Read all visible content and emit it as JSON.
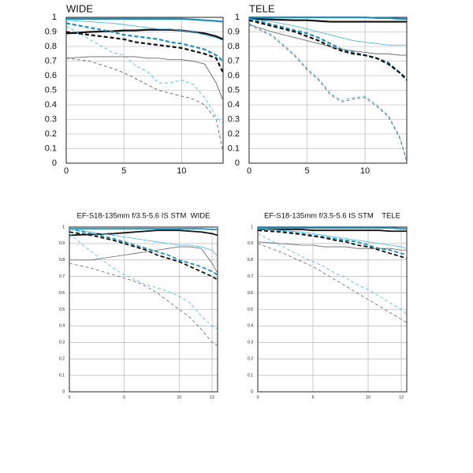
{
  "chart_data": [
    {
      "type": "line",
      "title": "WIDE",
      "title_align": "left",
      "x": [
        0,
        2,
        4,
        5,
        6,
        7,
        8,
        9,
        10,
        11,
        12,
        13,
        13.6
      ],
      "xlim": [
        0,
        13.6
      ],
      "ylim": [
        0,
        1
      ],
      "xticks": [
        0,
        5,
        10
      ],
      "yticks": [
        0,
        0.1,
        0.2,
        0.3,
        0.4,
        0.5,
        0.6,
        0.7,
        0.8,
        0.9,
        1
      ],
      "grid": true,
      "series": [
        {
          "color": "#1a8fc0",
          "linewidth": 2.2,
          "dashed": false,
          "values": [
            0.99,
            0.99,
            0.99,
            0.99,
            0.99,
            0.99,
            0.99,
            0.99,
            0.99,
            0.985,
            0.98,
            0.975,
            0.97
          ]
        },
        {
          "color": "#111111",
          "linewidth": 2.2,
          "dashed": false,
          "values": [
            0.89,
            0.9,
            0.905,
            0.91,
            0.91,
            0.915,
            0.915,
            0.915,
            0.91,
            0.9,
            0.89,
            0.87,
            0.85
          ]
        },
        {
          "color": "#1a8fc0",
          "linewidth": 2.2,
          "dashed": true,
          "values": [
            0.96,
            0.93,
            0.9,
            0.88,
            0.87,
            0.86,
            0.85,
            0.83,
            0.82,
            0.8,
            0.78,
            0.74,
            0.7
          ]
        },
        {
          "color": "#111111",
          "linewidth": 2.2,
          "dashed": true,
          "values": [
            0.9,
            0.88,
            0.86,
            0.85,
            0.83,
            0.82,
            0.81,
            0.8,
            0.79,
            0.77,
            0.75,
            0.72,
            0.62
          ]
        },
        {
          "color": "#4ab8e0",
          "linewidth": 0.9,
          "dashed": false,
          "values": [
            0.98,
            0.97,
            0.96,
            0.95,
            0.94,
            0.93,
            0.92,
            0.92,
            0.91,
            0.9,
            0.88,
            0.86,
            0.84
          ]
        },
        {
          "color": "#666666",
          "linewidth": 0.9,
          "dashed": false,
          "values": [
            0.72,
            0.73,
            0.73,
            0.73,
            0.73,
            0.72,
            0.72,
            0.71,
            0.71,
            0.7,
            0.68,
            0.55,
            0.43
          ]
        },
        {
          "color": "#4ab8e0",
          "linewidth": 0.9,
          "dashed": true,
          "values": [
            0.94,
            0.85,
            0.76,
            0.74,
            0.67,
            0.63,
            0.55,
            0.55,
            0.57,
            0.54,
            0.45,
            0.32,
            0.27
          ]
        },
        {
          "color": "#666666",
          "linewidth": 0.9,
          "dashed": true,
          "values": [
            0.72,
            0.7,
            0.65,
            0.62,
            0.58,
            0.54,
            0.5,
            0.48,
            0.46,
            0.44,
            0.4,
            0.3,
            0.08
          ]
        }
      ]
    },
    {
      "type": "line",
      "title": "TELE",
      "title_align": "left",
      "x": [
        0,
        2,
        4,
        5,
        6,
        7,
        8,
        9,
        10,
        11,
        12,
        13,
        13.6
      ],
      "xlim": [
        0,
        13.6
      ],
      "ylim": [
        0,
        1
      ],
      "xticks": [
        0,
        5,
        10
      ],
      "yticks": [
        0,
        0.1,
        0.2,
        0.3,
        0.4,
        0.5,
        0.6,
        0.7,
        0.8,
        0.9,
        1
      ],
      "grid": true,
      "series": [
        {
          "color": "#1a8fc0",
          "linewidth": 2.2,
          "dashed": false,
          "values": [
            1,
            1,
            1,
            1,
            1,
            1,
            1,
            1,
            1,
            0.995,
            0.995,
            0.99,
            0.99
          ]
        },
        {
          "color": "#111111",
          "linewidth": 2.2,
          "dashed": false,
          "values": [
            0.99,
            0.985,
            0.98,
            0.98,
            0.975,
            0.97,
            0.97,
            0.97,
            0.97,
            0.97,
            0.97,
            0.97,
            0.97
          ]
        },
        {
          "color": "#1a8fc0",
          "linewidth": 2.2,
          "dashed": true,
          "values": [
            0.99,
            0.95,
            0.91,
            0.89,
            0.86,
            0.82,
            0.78,
            0.76,
            0.74,
            0.72,
            0.69,
            0.62,
            0.58
          ]
        },
        {
          "color": "#111111",
          "linewidth": 2.2,
          "dashed": true,
          "values": [
            0.98,
            0.94,
            0.9,
            0.87,
            0.84,
            0.8,
            0.77,
            0.75,
            0.74,
            0.72,
            0.68,
            0.62,
            0.57
          ]
        },
        {
          "color": "#4ab8e0",
          "linewidth": 0.9,
          "dashed": false,
          "values": [
            0.99,
            0.97,
            0.94,
            0.92,
            0.9,
            0.88,
            0.86,
            0.84,
            0.83,
            0.82,
            0.81,
            0.81,
            0.81
          ]
        },
        {
          "color": "#666666",
          "linewidth": 0.9,
          "dashed": false,
          "values": [
            0.95,
            0.9,
            0.86,
            0.84,
            0.82,
            0.8,
            0.78,
            0.77,
            0.76,
            0.75,
            0.75,
            0.74,
            0.74
          ]
        },
        {
          "color": "#4ab8e0",
          "linewidth": 0.9,
          "dashed": true,
          "values": [
            0.96,
            0.88,
            0.74,
            0.65,
            0.58,
            0.48,
            0.43,
            0.45,
            0.46,
            0.4,
            0.33,
            0.18,
            0.02
          ]
        },
        {
          "color": "#666666",
          "linewidth": 0.9,
          "dashed": true,
          "values": [
            0.95,
            0.87,
            0.73,
            0.64,
            0.57,
            0.47,
            0.42,
            0.44,
            0.45,
            0.39,
            0.32,
            0.17,
            0.01
          ]
        }
      ]
    },
    {
      "type": "line",
      "title": "EF-S18-135mm f/3.5-5.6 IS STM  WIDE",
      "title_align": "center",
      "x": [
        0,
        2,
        4,
        5,
        6,
        7,
        8,
        9,
        10,
        11,
        12,
        13,
        13.5
      ],
      "xlim": [
        0,
        13.5
      ],
      "ylim": [
        0,
        1
      ],
      "xticks": [
        0,
        5,
        10,
        13
      ],
      "yticks": [
        0,
        0.1,
        0.2,
        0.3,
        0.4,
        0.5,
        0.6,
        0.7,
        0.8,
        0.9,
        1
      ],
      "grid": true,
      "series": [
        {
          "color": "#1a8fc0",
          "linewidth": 1.8,
          "dashed": false,
          "values": [
            0.99,
            0.99,
            0.99,
            0.99,
            0.99,
            0.99,
            0.99,
            0.99,
            0.99,
            0.99,
            0.99,
            0.985,
            0.985
          ]
        },
        {
          "color": "#111111",
          "linewidth": 1.8,
          "dashed": false,
          "values": [
            0.95,
            0.955,
            0.96,
            0.965,
            0.97,
            0.975,
            0.98,
            0.98,
            0.98,
            0.975,
            0.97,
            0.96,
            0.95
          ]
        },
        {
          "color": "#1a8fc0",
          "linewidth": 1.8,
          "dashed": true,
          "values": [
            0.99,
            0.96,
            0.93,
            0.91,
            0.89,
            0.87,
            0.85,
            0.83,
            0.8,
            0.78,
            0.76,
            0.73,
            0.71
          ]
        },
        {
          "color": "#111111",
          "linewidth": 1.8,
          "dashed": true,
          "values": [
            0.97,
            0.95,
            0.92,
            0.9,
            0.88,
            0.86,
            0.83,
            0.81,
            0.79,
            0.76,
            0.73,
            0.7,
            0.68
          ]
        },
        {
          "color": "#4ab8e0",
          "linewidth": 0.8,
          "dashed": false,
          "values": [
            0.99,
            0.97,
            0.95,
            0.94,
            0.93,
            0.92,
            0.91,
            0.9,
            0.89,
            0.89,
            0.88,
            0.86,
            0.82
          ]
        },
        {
          "color": "#666666",
          "linewidth": 0.8,
          "dashed": false,
          "values": [
            0.8,
            0.8,
            0.82,
            0.83,
            0.84,
            0.85,
            0.86,
            0.87,
            0.88,
            0.88,
            0.87,
            0.78,
            0.72
          ]
        },
        {
          "color": "#4ab8e0",
          "linewidth": 0.8,
          "dashed": true,
          "values": [
            0.96,
            0.85,
            0.75,
            0.71,
            0.68,
            0.65,
            0.63,
            0.61,
            0.58,
            0.54,
            0.46,
            0.4,
            0.38
          ]
        },
        {
          "color": "#666666",
          "linewidth": 0.8,
          "dashed": true,
          "values": [
            0.78,
            0.75,
            0.71,
            0.69,
            0.67,
            0.64,
            0.6,
            0.55,
            0.5,
            0.45,
            0.38,
            0.3,
            0.28
          ]
        }
      ]
    },
    {
      "type": "line",
      "title": "EF-S18-135mm f/3.5-5.6 IS STM    TELE",
      "title_align": "center",
      "x": [
        0,
        2,
        4,
        5,
        6,
        7,
        8,
        9,
        10,
        11,
        12,
        13,
        13.5
      ],
      "xlim": [
        0,
        13.5
      ],
      "ylim": [
        0,
        1
      ],
      "xticks": [
        0,
        5,
        10,
        13
      ],
      "yticks": [
        0,
        0.1,
        0.2,
        0.3,
        0.4,
        0.5,
        0.6,
        0.7,
        0.8,
        0.9,
        1
      ],
      "grid": true,
      "series": [
        {
          "color": "#1a8fc0",
          "linewidth": 1.8,
          "dashed": false,
          "values": [
            0.995,
            0.995,
            0.995,
            0.995,
            0.995,
            0.995,
            0.995,
            0.995,
            0.995,
            0.995,
            0.995,
            0.99,
            0.99
          ]
        },
        {
          "color": "#111111",
          "linewidth": 1.8,
          "dashed": false,
          "values": [
            0.985,
            0.985,
            0.985,
            0.98,
            0.98,
            0.98,
            0.98,
            0.98,
            0.98,
            0.98,
            0.975,
            0.975,
            0.975
          ]
        },
        {
          "color": "#1a8fc0",
          "linewidth": 1.8,
          "dashed": true,
          "values": [
            0.99,
            0.975,
            0.96,
            0.95,
            0.94,
            0.93,
            0.92,
            0.91,
            0.89,
            0.87,
            0.86,
            0.84,
            0.83
          ]
        },
        {
          "color": "#111111",
          "linewidth": 1.8,
          "dashed": true,
          "values": [
            0.98,
            0.97,
            0.955,
            0.945,
            0.935,
            0.92,
            0.91,
            0.89,
            0.88,
            0.86,
            0.84,
            0.82,
            0.81
          ]
        },
        {
          "color": "#4ab8e0",
          "linewidth": 0.8,
          "dashed": false,
          "values": [
            0.99,
            0.98,
            0.97,
            0.96,
            0.95,
            0.94,
            0.93,
            0.92,
            0.91,
            0.9,
            0.89,
            0.88,
            0.87
          ]
        },
        {
          "color": "#666666",
          "linewidth": 0.8,
          "dashed": false,
          "values": [
            0.91,
            0.9,
            0.89,
            0.89,
            0.88,
            0.88,
            0.88,
            0.87,
            0.87,
            0.87,
            0.87,
            0.86,
            0.86
          ]
        },
        {
          "color": "#4ab8e0",
          "linewidth": 0.8,
          "dashed": true,
          "values": [
            0.96,
            0.89,
            0.82,
            0.79,
            0.76,
            0.72,
            0.69,
            0.65,
            0.62,
            0.58,
            0.54,
            0.5,
            0.47
          ]
        },
        {
          "color": "#666666",
          "linewidth": 0.8,
          "dashed": true,
          "values": [
            0.9,
            0.85,
            0.79,
            0.76,
            0.72,
            0.68,
            0.64,
            0.6,
            0.56,
            0.52,
            0.48,
            0.44,
            0.42
          ]
        }
      ]
    }
  ]
}
